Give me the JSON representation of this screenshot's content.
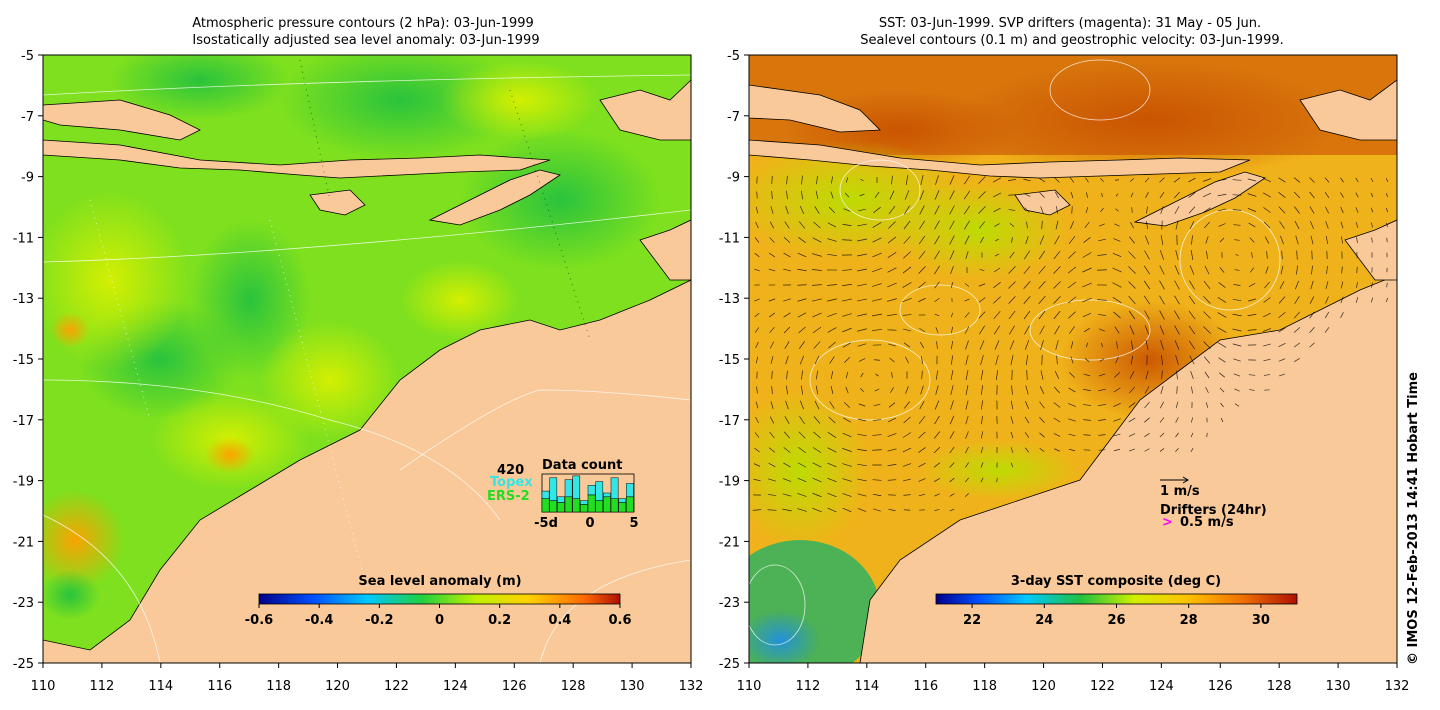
{
  "left_panel": {
    "title_line1": "Atmospheric pressure contours (2 hPa): 03-Jun-1999",
    "title_line2": "Isostatically adjusted sea level anomaly: 03-Jun-1999",
    "x_ticks": [
      "110",
      "112",
      "114",
      "116",
      "118",
      "120",
      "122",
      "124",
      "126",
      "128",
      "130",
      "132"
    ],
    "y_ticks": [
      "-5",
      "-7",
      "-9",
      "-11",
      "-13",
      "-15",
      "-17",
      "-19",
      "-21",
      "-23",
      "-25"
    ],
    "colorbar": {
      "label": "Sea level anomaly (m)",
      "ticks": [
        "-0.6",
        "-0.4",
        "-0.2",
        "0",
        "0.2",
        "0.4",
        "0.6"
      ]
    },
    "data_count": {
      "title": "Data count",
      "max_label": "420",
      "series_topex": "Topex",
      "series_ers": "ERS-2",
      "x_labels": [
        "-5d",
        "0",
        "5"
      ],
      "topex_color": "#33e6e6",
      "ers_color": "#22dd22",
      "topex": [
        0.55,
        0.9,
        0.4,
        0.85,
        0.95,
        0.3,
        0.7,
        0.8,
        0.5,
        0.9,
        0.35,
        0.75
      ],
      "ers": [
        0.35,
        0.3,
        0.25,
        0.4,
        0.35,
        0.2,
        0.45,
        0.3,
        0.4,
        0.35,
        0.25,
        0.4
      ]
    }
  },
  "right_panel": {
    "title_line1": "SST: 03-Jun-1999. SVP drifters (magenta): 31 May - 05 Jun.",
    "title_line2": "Sealevel contours (0.1 m) and geostrophic velocity: 03-Jun-1999.",
    "x_ticks": [
      "110",
      "112",
      "114",
      "116",
      "118",
      "120",
      "122",
      "124",
      "126",
      "128",
      "130",
      "132"
    ],
    "y_ticks": [
      "-5",
      "-7",
      "-9",
      "-11",
      "-13",
      "-15",
      "-17",
      "-19",
      "-21",
      "-23",
      "-25"
    ],
    "colorbar": {
      "label": "3-day SST composite (deg C)",
      "ticks": [
        "22",
        "24",
        "26",
        "28",
        "30"
      ]
    },
    "velocity_scale": "1 m/s",
    "drifters_label": "Drifters (24hr)",
    "drifter_symbol": ">",
    "drifter_scale": "0.5 m/s"
  },
  "credit": "© IMOS 12-Feb-2013 14:41 Hobart Time",
  "colors": {
    "land": "#f9c99a",
    "sla_bg": "#7ee01e",
    "sst_bg": "#f0b21a"
  }
}
